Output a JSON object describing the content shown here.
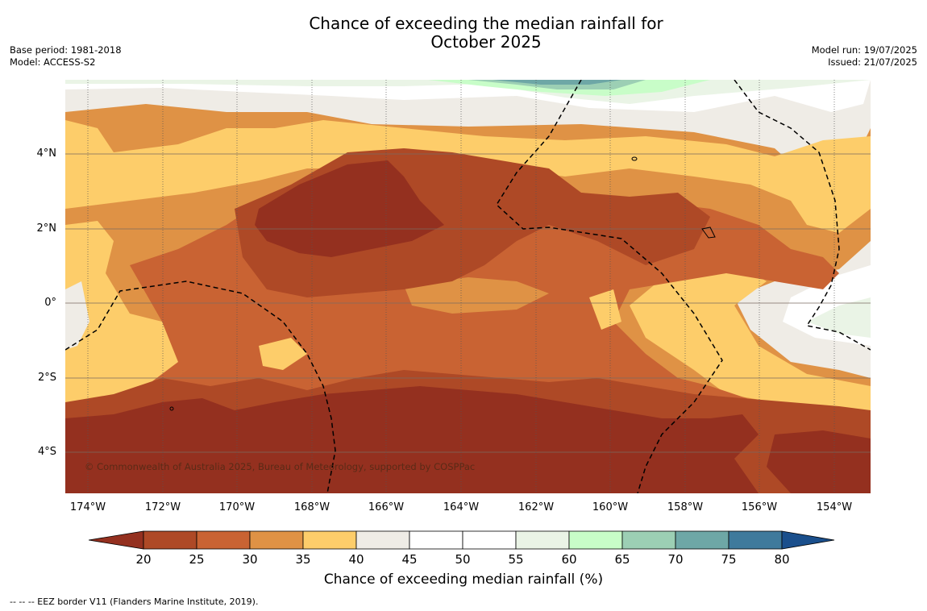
{
  "header": {
    "title_line1": "Chance of exceeding the median rainfall for",
    "title_line2": "October 2025",
    "base_period": "Base period: 1981-2018",
    "model": "Model: ACCESS-S2",
    "model_run": "Model run: 19/07/2025",
    "issued": "Issued: 21/07/2025"
  },
  "map": {
    "y_ticks": [
      "4°N",
      "2°N",
      "0°",
      "2°S",
      "4°S"
    ],
    "x_ticks": [
      "174°W",
      "172°W",
      "170°W",
      "168°W",
      "166°W",
      "164°W",
      "162°W",
      "160°W",
      "158°W",
      "156°W",
      "154°W"
    ],
    "copyright": "© Commonwealth of Australia 2025, Bureau of Meteorology, supported by COSPPac"
  },
  "colorbar": {
    "label": "Chance of exceeding median rainfall (%)",
    "ticks": [
      "20",
      "25",
      "30",
      "35",
      "40",
      "45",
      "50",
      "55",
      "60",
      "65",
      "70",
      "75",
      "80"
    ],
    "colors": {
      "under": "#94301f",
      "c20_25": "#ae4926",
      "c25_30": "#c96333",
      "c30_35": "#df9245",
      "c35_40": "#fdcd6a",
      "c40_45": "#efece6",
      "c45_50": "#ffffff",
      "c50_55": "#ffffff",
      "c55_60": "#eaf4e6",
      "c60_65": "#c8fdc8",
      "c65_70": "#9ccfb4",
      "c70_75": "#6ea7a6",
      "c75_80": "#3f7a9c",
      "over": "#1a4f8c"
    }
  },
  "footer": {
    "legend_text": "--  --  -- EEZ border V11 (Flanders Marine Institute, 2019)."
  }
}
